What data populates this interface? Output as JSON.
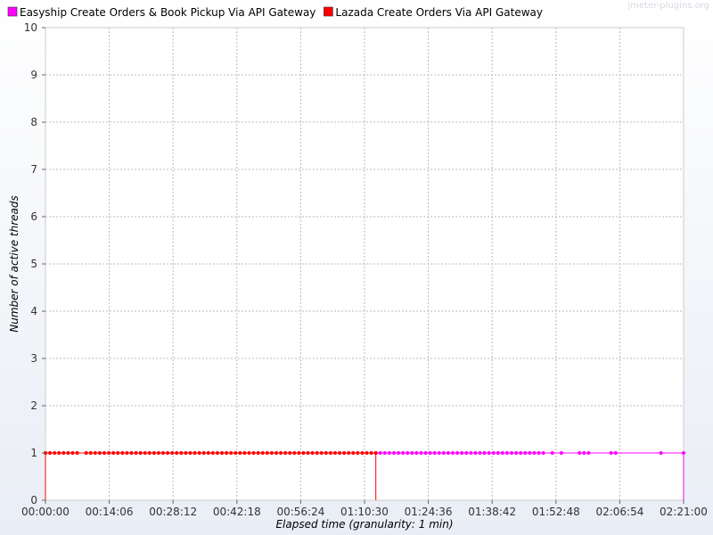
{
  "watermark": "jmeter-plugins.org",
  "chart_data": {
    "type": "line",
    "xlabel": "Elapsed time (granularity: 1 min)",
    "ylabel": "Number of active threads",
    "xlim_minutes": [
      0,
      141
    ],
    "ylim": [
      0,
      10
    ],
    "x_ticks": [
      "00:00:00",
      "00:14:06",
      "00:28:12",
      "00:42:18",
      "00:56:24",
      "01:10:30",
      "01:24:36",
      "01:38:42",
      "01:52:48",
      "02:06:54",
      "02:21:00"
    ],
    "y_ticks": [
      0,
      1,
      2,
      3,
      4,
      5,
      6,
      7,
      8,
      9,
      10
    ],
    "grid": true,
    "legend_position": "top-left",
    "series": [
      {
        "name": "Easyship Create Orders & Book Pickup Via API Gateway",
        "color": "#ff00ff",
        "x_minutes": [
          73,
          74,
          75,
          76,
          77,
          78,
          79,
          80,
          81,
          82,
          83,
          84,
          85,
          86,
          87,
          88,
          89,
          90,
          91,
          92,
          93,
          94,
          95,
          96,
          97,
          98,
          99,
          100,
          101,
          102,
          103,
          104,
          105,
          106,
          107,
          108,
          109,
          110,
          112,
          114,
          118,
          119,
          120,
          125,
          126,
          136,
          141
        ],
        "y_value": 1,
        "drops_to_zero_at_end": true
      },
      {
        "name": "Lazada Create Orders Via API Gateway",
        "color": "#ff0000",
        "x_minutes": [
          0,
          1,
          2,
          3,
          4,
          5,
          6,
          7,
          9,
          10,
          11,
          12,
          13,
          14,
          15,
          16,
          17,
          18,
          19,
          20,
          21,
          22,
          23,
          24,
          25,
          26,
          27,
          28,
          29,
          30,
          31,
          32,
          33,
          34,
          35,
          36,
          37,
          38,
          39,
          40,
          41,
          42,
          43,
          44,
          45,
          46,
          47,
          48,
          49,
          50,
          51,
          52,
          53,
          54,
          55,
          56,
          57,
          58,
          59,
          60,
          61,
          62,
          63,
          64,
          65,
          66,
          67,
          68,
          69,
          70,
          71,
          72,
          73
        ],
        "y_value": 1,
        "drops_to_zero_at_start": true,
        "drops_to_zero_at_end": true
      }
    ]
  }
}
